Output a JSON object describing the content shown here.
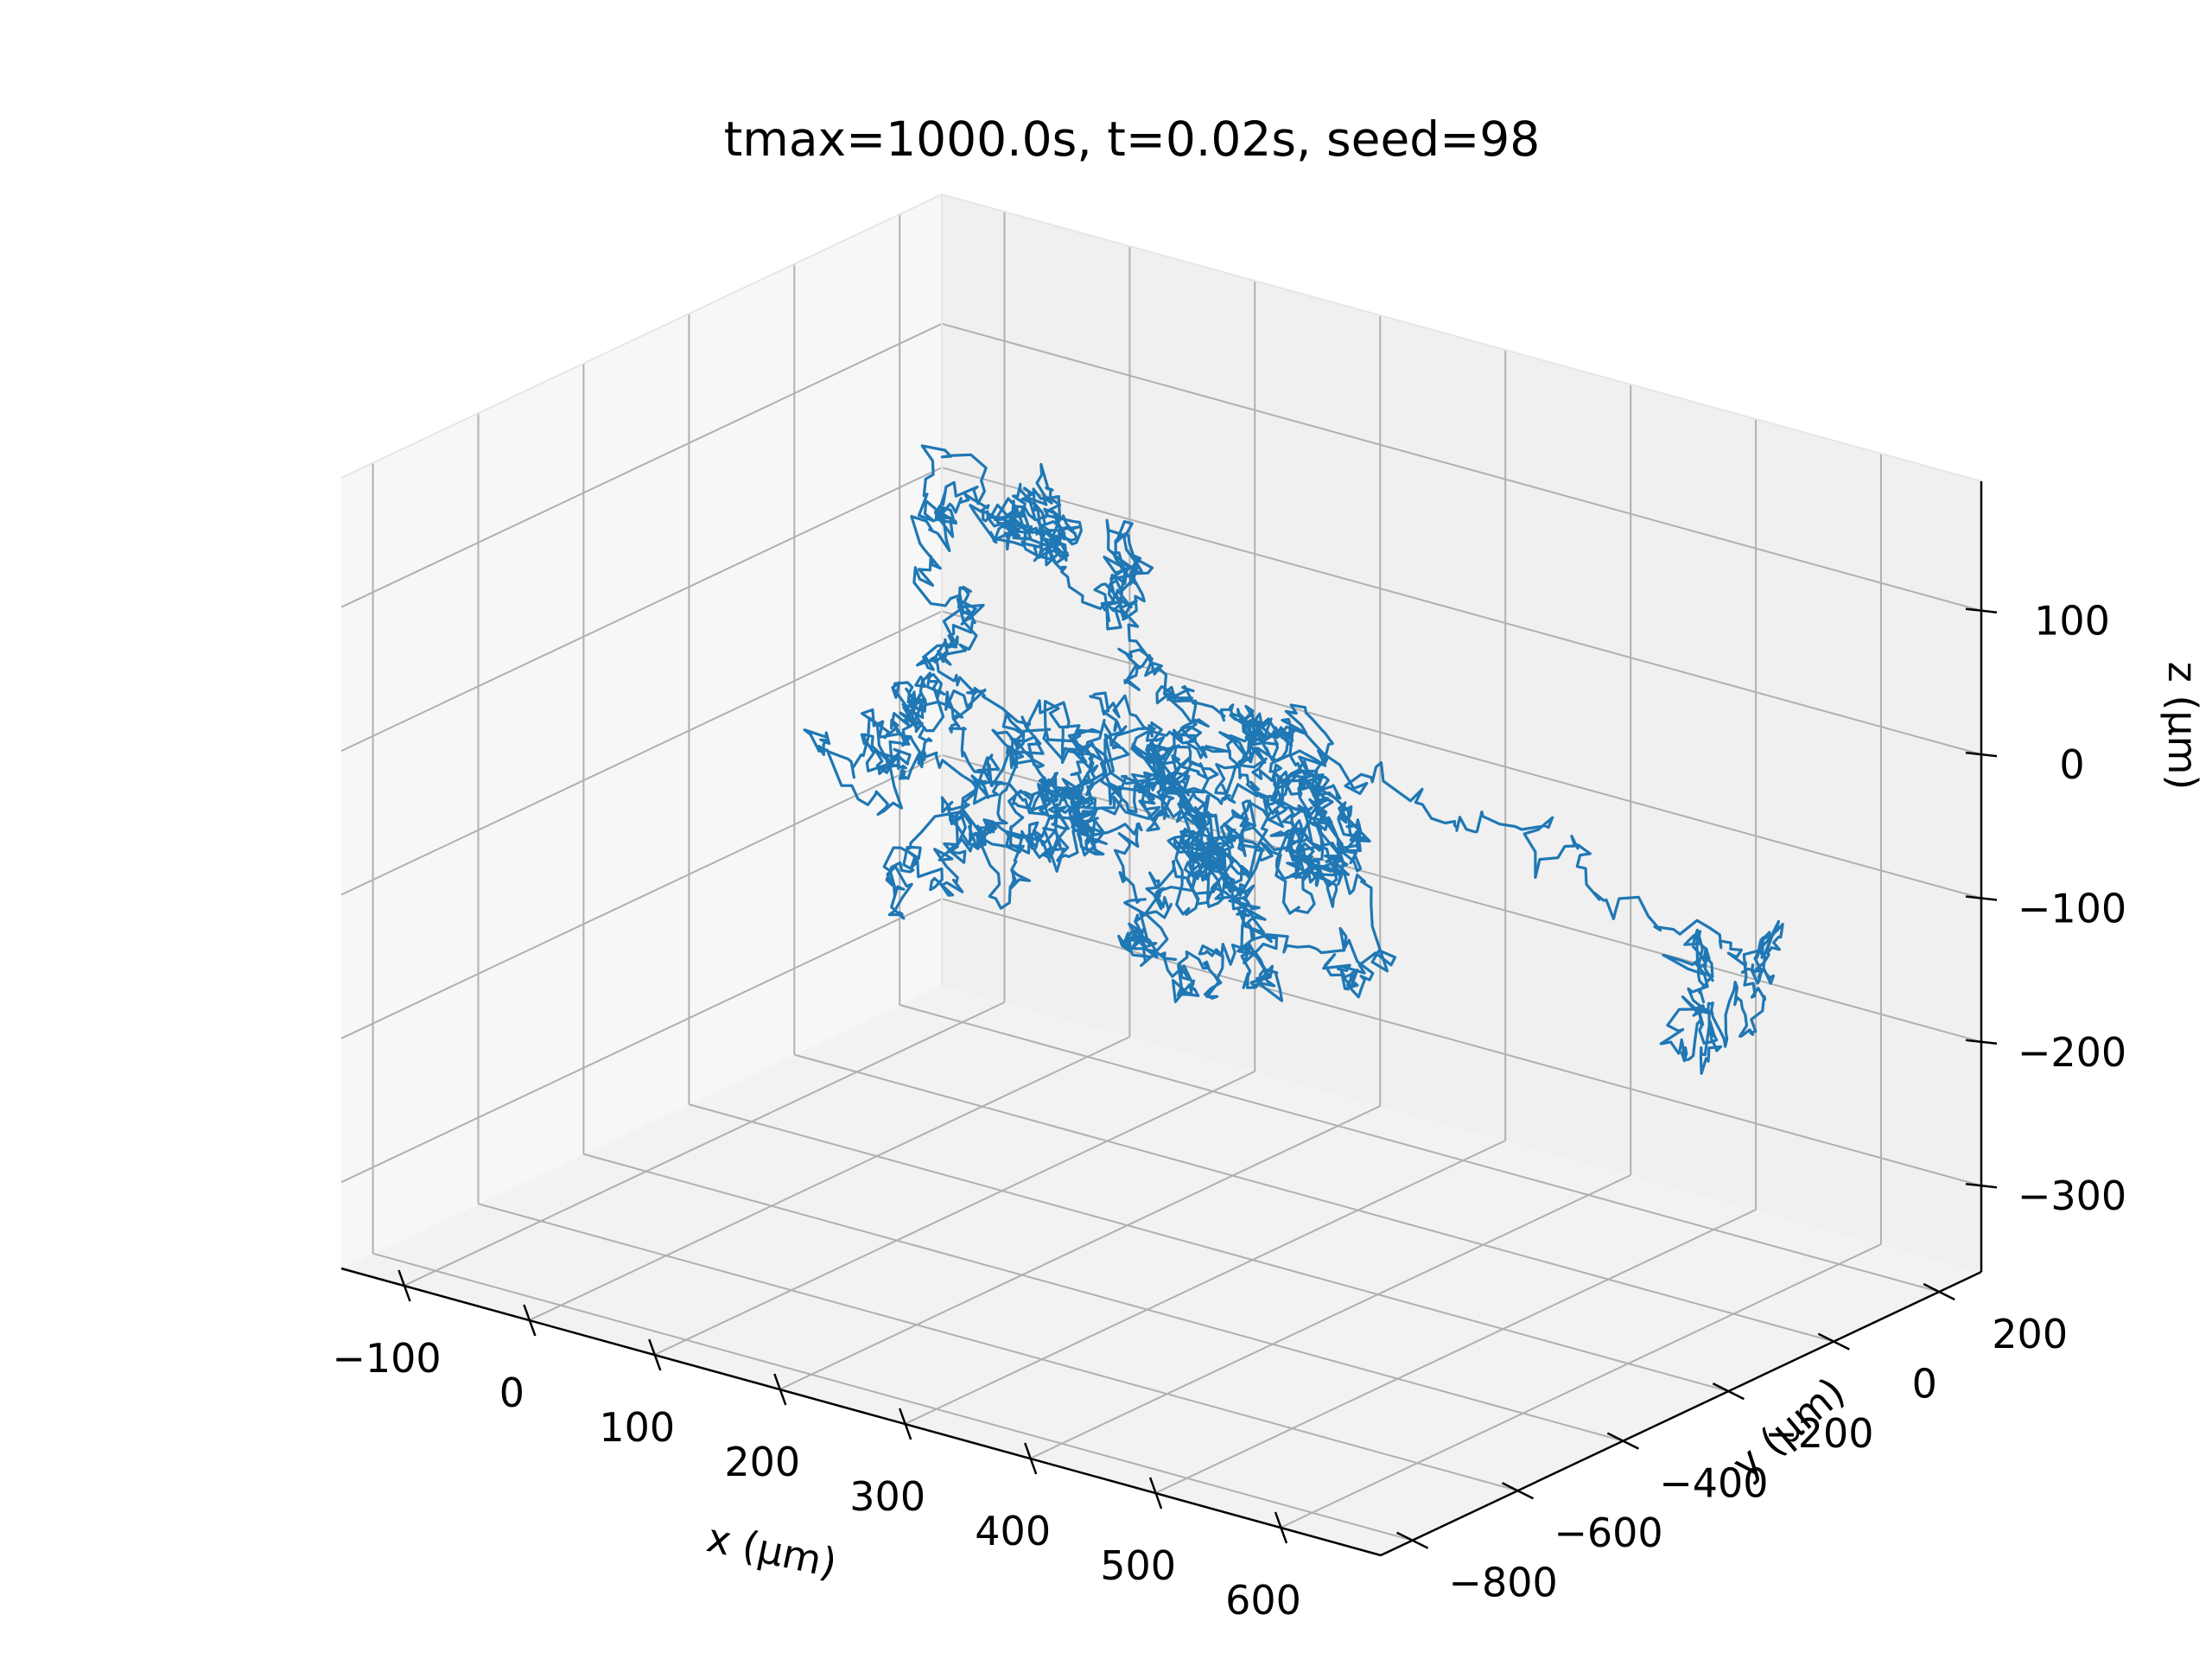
{
  "chart_data": {
    "type": "line",
    "projection": "3d",
    "title": "tmax=1000.0s, t=0.02s, seed=98",
    "xlabel": "x (μm)",
    "ylabel": "y (μm)",
    "zlabel": "z (μm)",
    "xlim": [
      -150,
      680
    ],
    "ylim": [
      -860,
      280
    ],
    "zlim": [
      -360,
      190
    ],
    "x_ticks": [
      -100,
      0,
      100,
      200,
      300,
      400,
      500,
      600
    ],
    "x_tick_labels": [
      "−100",
      "0",
      "100",
      "200",
      "300",
      "400",
      "500",
      "600"
    ],
    "y_ticks": [
      -800,
      -600,
      -400,
      -200,
      0,
      200
    ],
    "y_tick_labels": [
      "−800",
      "−600",
      "−400",
      "−200",
      "0",
      "200"
    ],
    "z_ticks": [
      -300,
      -200,
      -100,
      0,
      100
    ],
    "z_tick_labels": [
      "−300",
      "−200",
      "−100",
      "0",
      "100"
    ],
    "grid": true,
    "series": [
      {
        "color": "#1f77b4",
        "random_walk": {
          "description_free": true,
          "seed": 98,
          "num_points": 3200,
          "x_range": [
            -150,
            680
          ],
          "y_range": [
            -860,
            280
          ],
          "z_range": [
            -360,
            190
          ]
        }
      }
    ]
  }
}
